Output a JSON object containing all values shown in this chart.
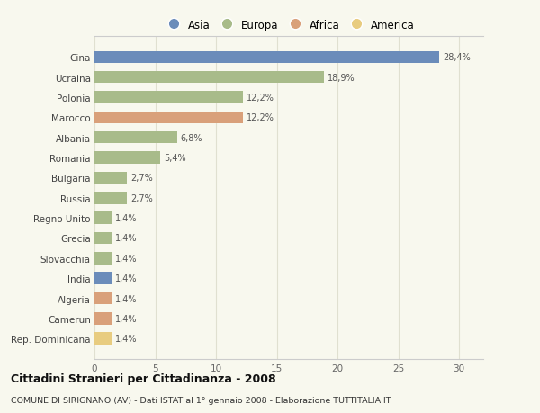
{
  "countries": [
    "Cina",
    "Ucraina",
    "Polonia",
    "Marocco",
    "Albania",
    "Romania",
    "Bulgaria",
    "Russia",
    "Regno Unito",
    "Grecia",
    "Slovacchia",
    "India",
    "Algeria",
    "Camerun",
    "Rep. Dominicana"
  ],
  "values": [
    28.4,
    18.9,
    12.2,
    12.2,
    6.8,
    5.4,
    2.7,
    2.7,
    1.4,
    1.4,
    1.4,
    1.4,
    1.4,
    1.4,
    1.4
  ],
  "labels": [
    "28,4%",
    "18,9%",
    "12,2%",
    "12,2%",
    "6,8%",
    "5,4%",
    "2,7%",
    "2,7%",
    "1,4%",
    "1,4%",
    "1,4%",
    "1,4%",
    "1,4%",
    "1,4%",
    "1,4%"
  ],
  "continents": [
    "Asia",
    "Europa",
    "Europa",
    "Africa",
    "Europa",
    "Europa",
    "Europa",
    "Europa",
    "Europa",
    "Europa",
    "Europa",
    "Asia",
    "Africa",
    "Africa",
    "America"
  ],
  "continent_colors": {
    "Asia": "#6b8cba",
    "Europa": "#a8bb8a",
    "Africa": "#d9a07a",
    "America": "#e8cc80"
  },
  "legend_order": [
    "Asia",
    "Europa",
    "Africa",
    "America"
  ],
  "title": "Cittadini Stranieri per Cittadinanza - 2008",
  "subtitle": "COMUNE DI SIRIGNANO (AV) - Dati ISTAT al 1° gennaio 2008 - Elaborazione TUTTITALIA.IT",
  "xlim": [
    0,
    32
  ],
  "xticks": [
    0,
    5,
    10,
    15,
    20,
    25,
    30
  ],
  "background_color": "#f8f8ee",
  "grid_color": "#e0e0d0",
  "bar_height": 0.6
}
